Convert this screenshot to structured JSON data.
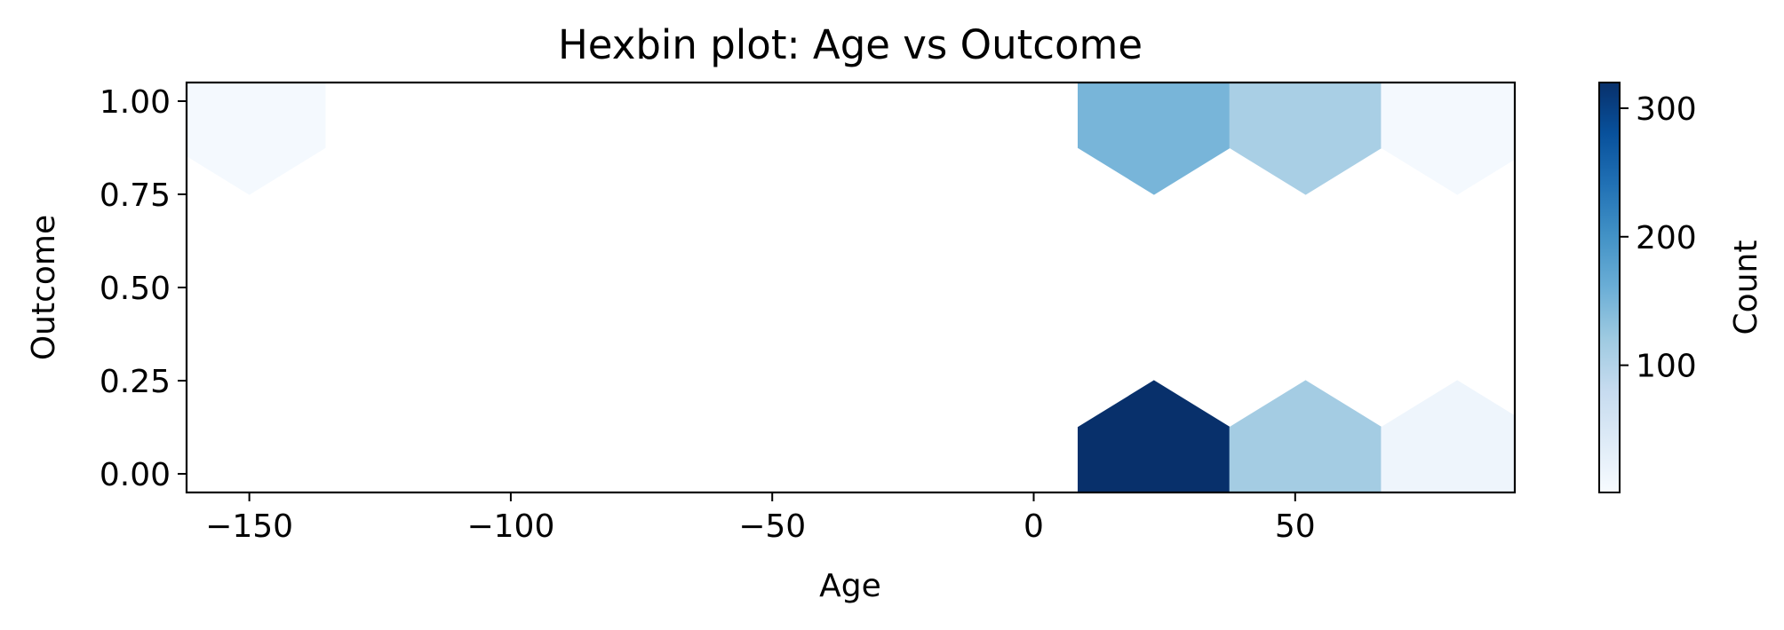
{
  "chart_data": {
    "type": "hexbin",
    "title": "Hexbin plot: Age vs Outcome",
    "xlabel": "Age",
    "ylabel": "Outcome",
    "xlim": [
      -162,
      92
    ],
    "ylim": [
      -0.05,
      1.05
    ],
    "xticks": [
      -150,
      -100,
      -50,
      0,
      50
    ],
    "xtick_labels": [
      "−150",
      "−100",
      "−50",
      "0",
      "50"
    ],
    "yticks": [
      0.0,
      0.25,
      0.5,
      0.75,
      1.0
    ],
    "ytick_labels": [
      "0.00",
      "0.25",
      "0.50",
      "0.75",
      "1.00"
    ],
    "hex_half_width": 14.5,
    "hex_radius": 0.25,
    "bins": [
      {
        "x": -150,
        "y": 1,
        "count": 5
      },
      {
        "x": 23,
        "y": 1,
        "count": 150
      },
      {
        "x": 52,
        "y": 1,
        "count": 110
      },
      {
        "x": 81,
        "y": 1,
        "count": 5
      },
      {
        "x": 23,
        "y": 0,
        "count": 320
      },
      {
        "x": 52,
        "y": 0,
        "count": 115
      },
      {
        "x": 81,
        "y": 0,
        "count": 15
      }
    ],
    "colormap": "Blues",
    "colormap_stops": [
      "#f7fbff",
      "#deebf7",
      "#c6dbef",
      "#9ecae1",
      "#6baed6",
      "#4292c6",
      "#2171b5",
      "#08519c",
      "#08306b"
    ],
    "colorbar": {
      "label": "Count",
      "range": [
        1,
        320
      ],
      "ticks": [
        100,
        200,
        300
      ],
      "tick_labels": [
        "100",
        "200",
        "300"
      ]
    },
    "grid": false,
    "legend": "none"
  }
}
